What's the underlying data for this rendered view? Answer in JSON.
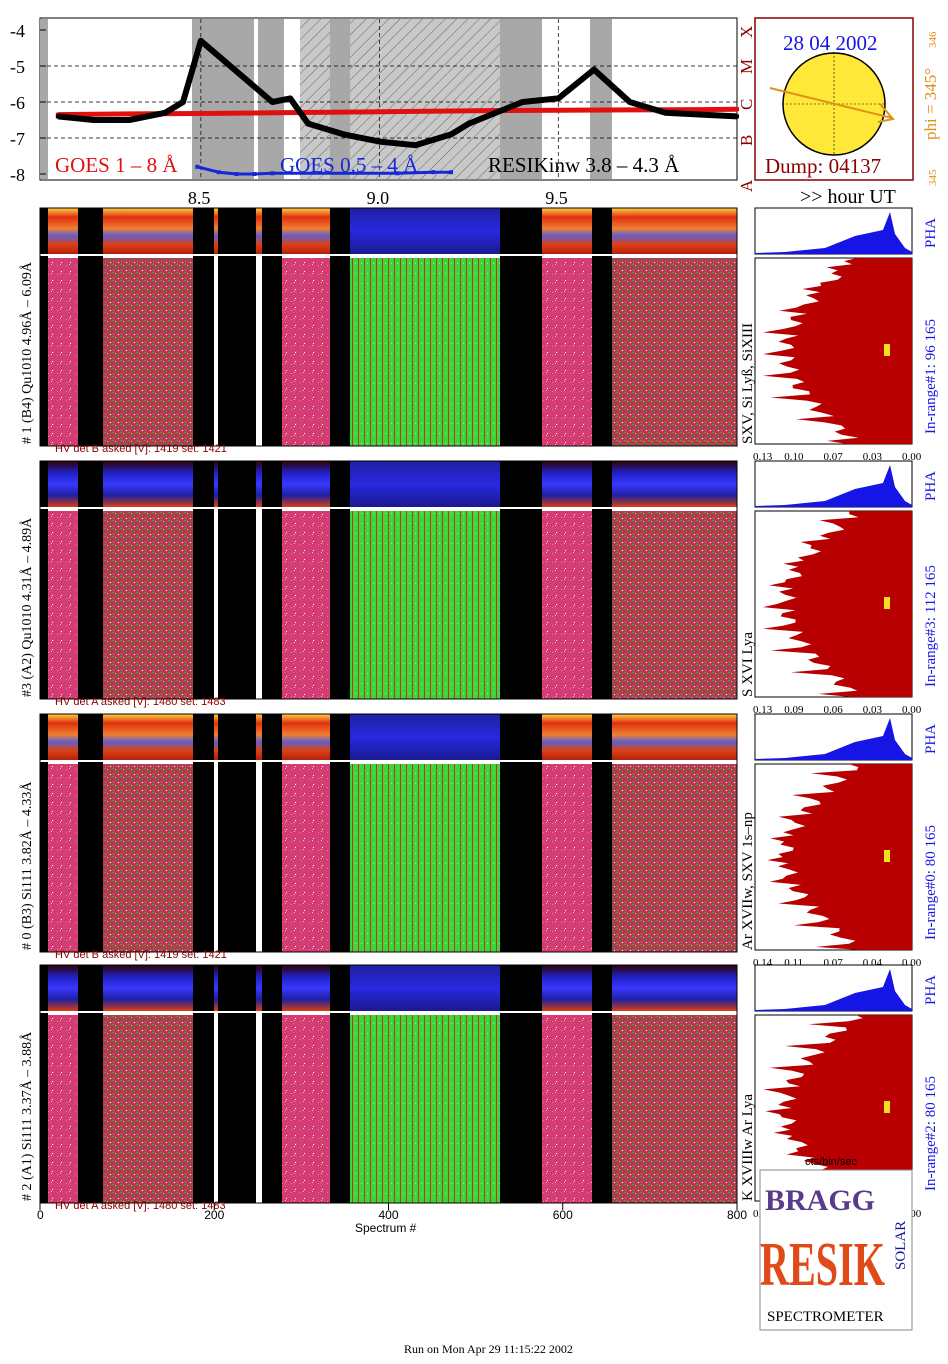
{
  "colors": {
    "goes_long": "#e11010",
    "goes_short": "#1528d8",
    "resik": "#000000",
    "shade": "#a8a8a8",
    "label_red": "#8b0000",
    "pha_blue": "#1515e6",
    "histogram": "#b80000",
    "disk": "#ffe838",
    "orange": "#e09018",
    "cyan_date": "#1515e6"
  },
  "header_time_axis": {
    "label": ">> hour UT",
    "ticks": [
      "8.5",
      "9.0",
      "9.5"
    ]
  },
  "goes_panel": {
    "yticks": [
      "-4",
      "-5",
      "-6",
      "-7",
      "-8"
    ],
    "class_labels": [
      "X",
      "M",
      "C",
      "B",
      "A"
    ],
    "legend_goes_long": "GOES 1 – 8 Å",
    "legend_goes_short": "GOES 0.5 – 4 Å",
    "legend_resik": "RESIKinw 3.8 – 4.3 Å"
  },
  "sun_panel": {
    "date": "28 04 2002",
    "dump": "Dump: 04137",
    "phi": "phi = 345°",
    "phi_sub": "346",
    "phi_small": "345"
  },
  "detectors": [
    {
      "side_label": "# 1 (B4) Qu1010  4.96Å – 6.09Å",
      "hv_text": "HV det B asked [V]:  1419  set:  1421",
      "lines_label": "SXV, Si Lyß, SiXIII",
      "inrange_label": "In-range#1:  96 165",
      "pha_label": "PHA",
      "hist_ticks": [
        "0.13",
        "0.10",
        "0.07",
        "0.03",
        "0.00"
      ],
      "pha_top_blue": false
    },
    {
      "side_label": "#3 (A2) Qu1010  4.31Å – 4.89Å",
      "hv_text": "HV det A asked [V]:  1480  set:  1483",
      "lines_label": "S XVI Lya",
      "inrange_label": "In-range#3:  112 165",
      "pha_label": "PHA",
      "hist_ticks": [
        "0.13",
        "0.09",
        "0.06",
        "0.03",
        "0.00"
      ],
      "pha_top_blue": true
    },
    {
      "side_label": "# 0 (B3) Si111  3.82Å – 4.33Å",
      "hv_text": "HV det B asked [V]:  1419  set:  1421",
      "lines_label": "Ar XVIIw,  SXV 1s–np",
      "inrange_label": "In-range#0:  80 165",
      "pha_label": "PHA",
      "hist_ticks": [
        "0.14",
        "0.11",
        "0.07",
        "0.04",
        "0.00"
      ],
      "pha_top_blue": false
    },
    {
      "side_label": "# 2 (A1) Si111  3.37Å – 3.88Å",
      "hv_text": "HV det A asked [V]:  1480  set:  1483",
      "lines_label": "K XVIIIw  Ar Lya",
      "inrange_label": "In-range#2:  80 165",
      "pha_label": "PHA",
      "hist_ticks": [
        "0.09",
        "0.07",
        "0.04",
        "0.02",
        "0.00"
      ],
      "pha_top_blue": true
    }
  ],
  "spectrum_axis": {
    "xlabel": "Spectrum #",
    "ticks": [
      "0",
      "200",
      "400",
      "600",
      "800"
    ]
  },
  "hist_axis_label": "cts/bin/sec",
  "logo": {
    "letters_top": "BRAGG",
    "letters_mid": "RESIK",
    "letters_side": "SOLAR",
    "bottom_word": "SPECTROMETER"
  },
  "footer": "Run on Mon Apr 29 11:15:22 2002",
  "chart_data": [
    {
      "type": "line",
      "series": [
        {
          "name": "GOES 1 – 8 Å",
          "x": [
            8.1,
            8.3,
            8.5,
            8.7,
            8.9,
            9.1,
            9.3,
            9.5,
            9.7,
            9.9,
            10.0
          ],
          "values": [
            -6.35,
            -6.33,
            -6.32,
            -6.3,
            -6.28,
            -6.26,
            -6.24,
            -6.23,
            -6.22,
            -6.21,
            -6.2
          ]
        },
        {
          "name": "GOES 0.5 – 4 Å",
          "x": [
            8.49,
            8.55,
            8.6,
            8.65,
            8.7,
            9.05,
            9.15,
            9.2
          ],
          "values": [
            -7.8,
            -7.95,
            -8.0,
            -8.0,
            -7.98,
            -7.98,
            -7.95,
            -7.95
          ]
        },
        {
          "name": "RESIKinw 3.8 – 4.3 Å",
          "x": [
            8.1,
            8.2,
            8.3,
            8.4,
            8.45,
            8.5,
            8.7,
            8.75,
            8.8,
            8.9,
            9.0,
            9.1,
            9.2,
            9.25,
            9.4,
            9.5,
            9.6,
            9.7,
            9.8,
            9.9,
            10.0
          ],
          "values": [
            -6.4,
            -6.5,
            -6.5,
            -6.3,
            -6.0,
            -4.3,
            -6.0,
            -5.9,
            -6.6,
            -6.9,
            -7.1,
            -7.2,
            -6.9,
            -6.6,
            -6.0,
            -5.9,
            -5.1,
            -6.0,
            -6.3,
            -6.35,
            -6.4
          ]
        }
      ],
      "title": "",
      "xlabel": ">> hour UT",
      "ylabel": "",
      "xlim": [
        8.05,
        10.0
      ],
      "ylim": [
        -8,
        -4
      ]
    }
  ]
}
